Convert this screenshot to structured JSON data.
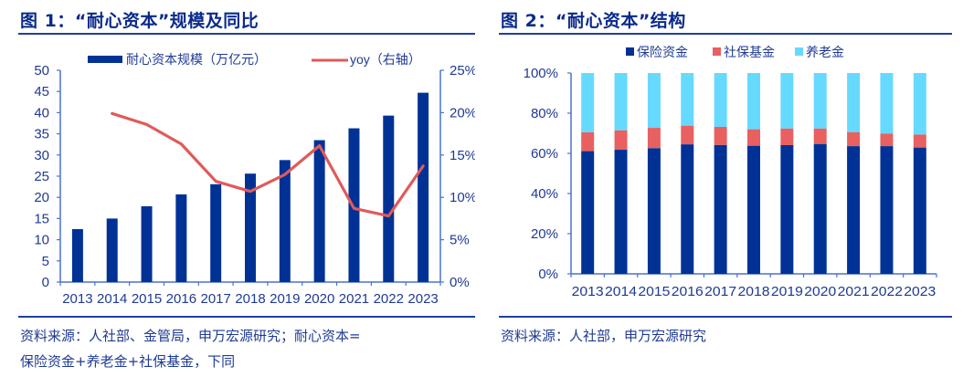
{
  "colors": {
    "bar_blue": "#003296",
    "line_red": "#e05a5a",
    "social_red": "#e86060",
    "pension_cyan": "#66d9ff",
    "axis": "#4a72d0",
    "text": "#1f3a93"
  },
  "chart_data": [
    {
      "type": "bar+line",
      "title": "图 1：“耐心资本”规模及同比",
      "categories": [
        "2013",
        "2014",
        "2015",
        "2016",
        "2017",
        "2018",
        "2019",
        "2020",
        "2021",
        "2022",
        "2023"
      ],
      "series": [
        {
          "name": "耐心资本规模（万亿元）",
          "type": "bar",
          "axis": "left",
          "values": [
            12.5,
            15.0,
            17.9,
            20.7,
            23.1,
            25.6,
            28.8,
            33.5,
            36.3,
            39.3,
            44.7
          ]
        },
        {
          "name": "yoy（右轴）",
          "type": "line",
          "axis": "right",
          "values": [
            null,
            19.9,
            18.6,
            16.3,
            11.9,
            10.7,
            12.7,
            16.1,
            8.7,
            7.8,
            13.7
          ]
        }
      ],
      "left_axis": {
        "ylim": [
          0,
          50
        ],
        "ticks": [
          "0",
          "5",
          "10",
          "15",
          "20",
          "25",
          "30",
          "35",
          "40",
          "45",
          "50"
        ]
      },
      "right_axis": {
        "ylim": [
          0,
          25
        ],
        "ticks": [
          "0%",
          "5%",
          "10%",
          "15%",
          "20%",
          "25%"
        ]
      },
      "legend_position": "top",
      "grid": false,
      "source": "资料来源：人社部、金管局，申万宏源研究；耐心资本=保险资金+养老金+社保基金，下同"
    },
    {
      "type": "stacked-bar",
      "title": "图 2：“耐心资本”结构",
      "categories": [
        "2013",
        "2014",
        "2015",
        "2016",
        "2017",
        "2018",
        "2019",
        "2020",
        "2021",
        "2022",
        "2023"
      ],
      "series": [
        {
          "name": "保险资金",
          "values": [
            61.1,
            61.8,
            62.6,
            64.5,
            64.2,
            63.8,
            64.1,
            64.7,
            63.6,
            63.6,
            62.9
          ]
        },
        {
          "name": "社保基金",
          "values": [
            9.4,
            9.7,
            10.1,
            9.3,
            9.0,
            8.2,
            8.3,
            7.7,
            7.0,
            6.3,
            6.5
          ]
        },
        {
          "name": "养老金",
          "values": [
            29.5,
            28.5,
            27.3,
            26.2,
            26.8,
            28.0,
            27.6,
            27.6,
            29.4,
            30.1,
            30.6
          ]
        }
      ],
      "y_axis": {
        "ylim": [
          0,
          100
        ],
        "ticks": [
          "0%",
          "20%",
          "40%",
          "60%",
          "80%",
          "100%"
        ]
      },
      "legend_position": "top",
      "grid": false,
      "source": "资料来源：人社部，申万宏源研究"
    }
  ],
  "panel1": {
    "title": "图 1：“耐心资本”规模及同比",
    "source_line1": "资料来源：人社部、金管局，申万宏源研究；耐心资本=",
    "source_line2": "保险资金+养老金+社保基金，下同"
  },
  "panel2": {
    "title": "图 2：“耐心资本”结构",
    "source": "资料来源：人社部，申万宏源研究"
  }
}
